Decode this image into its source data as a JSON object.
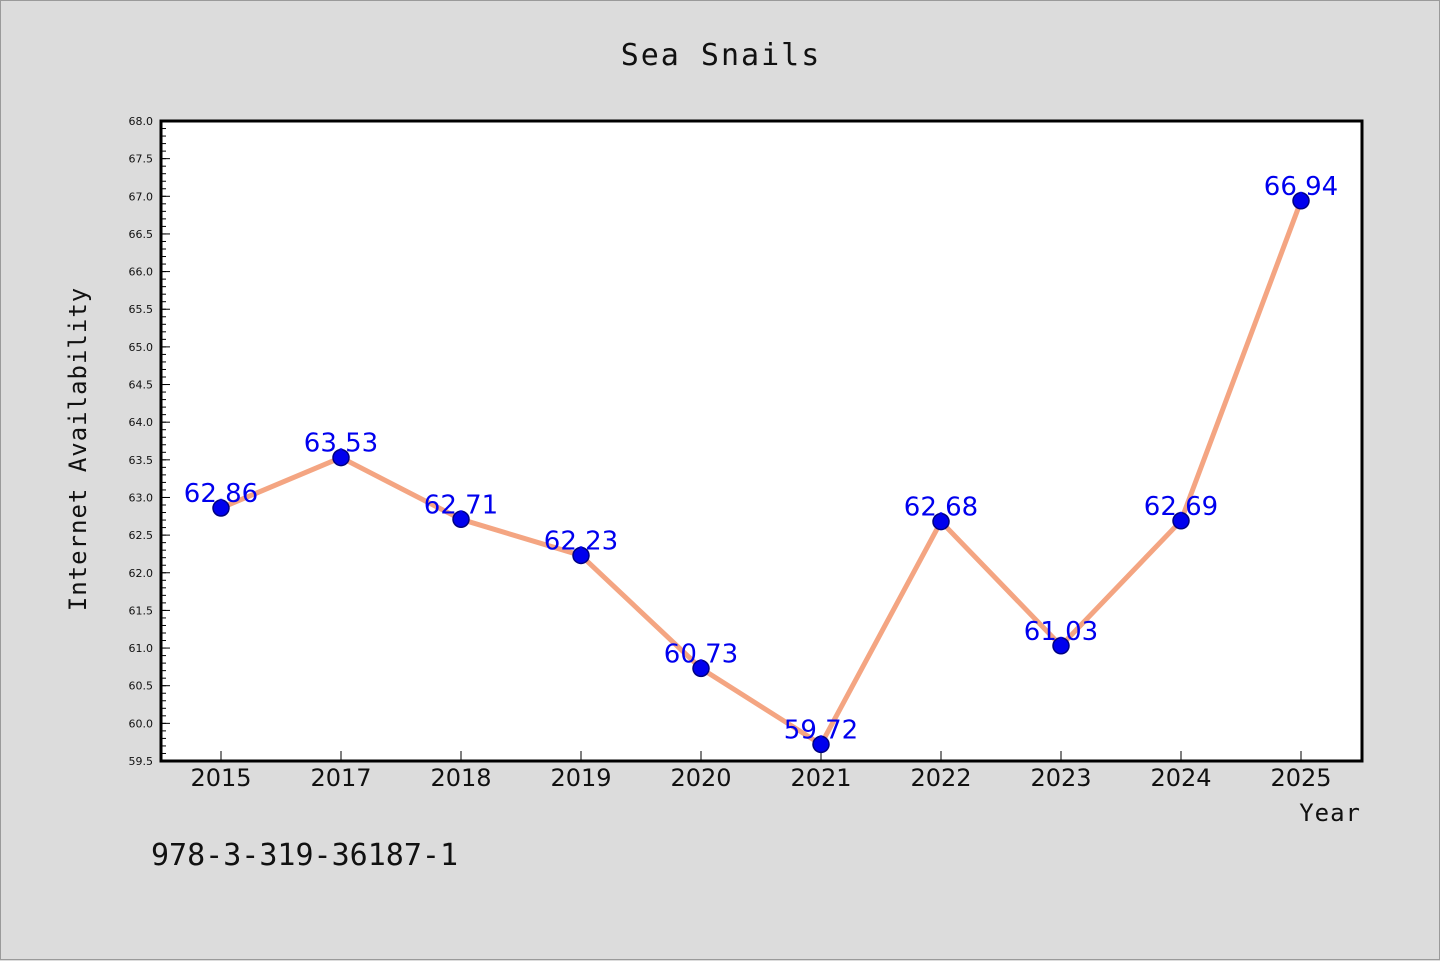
{
  "chart_data": {
    "type": "line",
    "title": "Sea Snails",
    "xlabel": "Year",
    "ylabel": "Internet Availability",
    "categories": [
      "2015",
      "2017",
      "2018",
      "2019",
      "2020",
      "2021",
      "2022",
      "2023",
      "2024",
      "2025"
    ],
    "series": [
      {
        "values": [
          62.86,
          63.53,
          62.71,
          62.23,
          60.73,
          59.72,
          62.68,
          61.03,
          62.69,
          66.94
        ]
      }
    ],
    "data_labels": [
      "62.86",
      "63.53",
      "62.71",
      "62.23",
      "60.73",
      "59.72",
      "62.68",
      "61.03",
      "62.69",
      "66.94"
    ],
    "ylim": [
      59.5,
      68.0
    ],
    "yticks": [
      "59.5",
      "60.0",
      "60.5",
      "61.0",
      "61.5",
      "62.0",
      "62.5",
      "63.0",
      "63.5",
      "64.0",
      "64.5",
      "65.0",
      "65.5",
      "66.0",
      "66.5",
      "67.0",
      "67.5",
      "68.0"
    ],
    "grid": false,
    "legend": "none",
    "colors": {
      "line": "#f4a582",
      "marker": "#0000ee",
      "marker_edge": "#000080",
      "data_label": "#0000ee",
      "plot_background": "#ffffff",
      "page_background": "#dcdcdc"
    }
  },
  "footnote": "978-3-319-36187-1"
}
